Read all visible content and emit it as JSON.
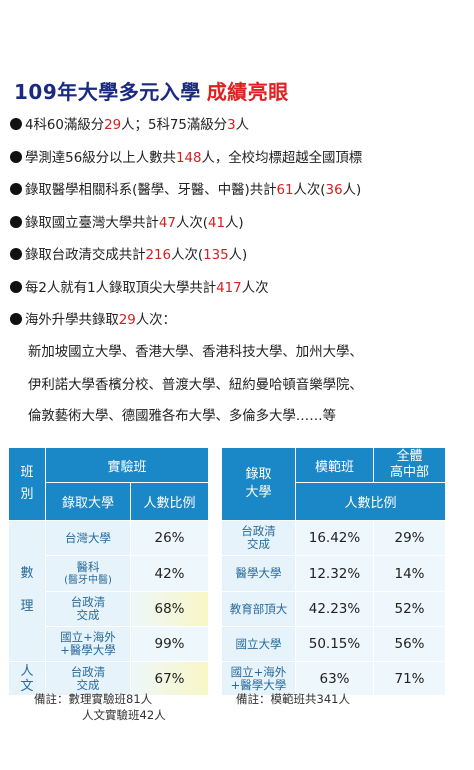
{
  "title": {
    "main": "109年大學多元入學",
    "highlight": "成績亮眼"
  },
  "bullets": [
    {
      "parts": [
        "4科60滿級分",
        "29",
        "人；5科75滿級分",
        "3",
        "人"
      ]
    },
    {
      "parts": [
        "學測達56級分以上人數共",
        "148",
        "人，全校均標超越全國頂標"
      ]
    },
    {
      "parts": [
        "錄取醫學相關科系(醫學、牙醫、中醫)共計",
        "61",
        "人次(",
        "36",
        "人)"
      ]
    },
    {
      "parts": [
        "錄取國立臺灣大學共計",
        "47",
        "人次(",
        "41",
        "人)"
      ]
    },
    {
      "parts": [
        "錄取台政清交成共計",
        "216",
        "人次(",
        "135",
        "人)"
      ]
    },
    {
      "parts": [
        "每2人就有1人錄取頂尖大學共計",
        "417",
        "人次"
      ]
    },
    {
      "parts": [
        "海外升學共錄取",
        "29",
        "人次："
      ]
    }
  ],
  "overseas_lines": [
    "新加坡國立大學、香港大學、香港科技大學、加州大學、",
    "伊利諾大學香檳分校、普渡大學、紐約曼哈頓音樂學院、",
    "倫敦藝術大學、德國雅各布大學、多倫多大學……等"
  ],
  "table1": {
    "class_header": "班\n別",
    "group_header": "實驗班",
    "col_school": "錄取大學",
    "col_ratio": "人數比例",
    "group_math": "數\n\n\n理",
    "group_hum": "人\n文",
    "rows": [
      {
        "school": "台灣大學",
        "school_sub": "",
        "ratio": "26%"
      },
      {
        "school": "醫科",
        "school_sub": "(醫牙中醫)",
        "ratio": "42%"
      },
      {
        "school": "台政清\n交成",
        "school_sub": "",
        "ratio": "68%"
      },
      {
        "school": "國立+海外\n+醫學大學",
        "school_sub": "",
        "ratio": "99%"
      },
      {
        "school": "台政清\n交成",
        "school_sub": "",
        "ratio": "67%"
      }
    ]
  },
  "table2": {
    "col_school": "錄取\n大學",
    "col_model": "模範班",
    "col_all": "全體\n高中部",
    "col_ratio": "人數比例",
    "rows": [
      {
        "school": "台政清\n交成",
        "model": "16.42%",
        "all": "29%"
      },
      {
        "school": "醫學大學",
        "model": "12.32%",
        "all": "14%"
      },
      {
        "school": "教育部頂大",
        "model": "42.23%",
        "all": "52%"
      },
      {
        "school": "國立大學",
        "model": "50.15%",
        "all": "56%"
      },
      {
        "school": "國立+海外\n+醫學大學",
        "model": "63%",
        "all": "71%"
      }
    ]
  },
  "notes": {
    "left_1": "備註：數理實驗班81人",
    "left_2": "人文實驗班42人",
    "right": "備註：模範班共341人"
  }
}
